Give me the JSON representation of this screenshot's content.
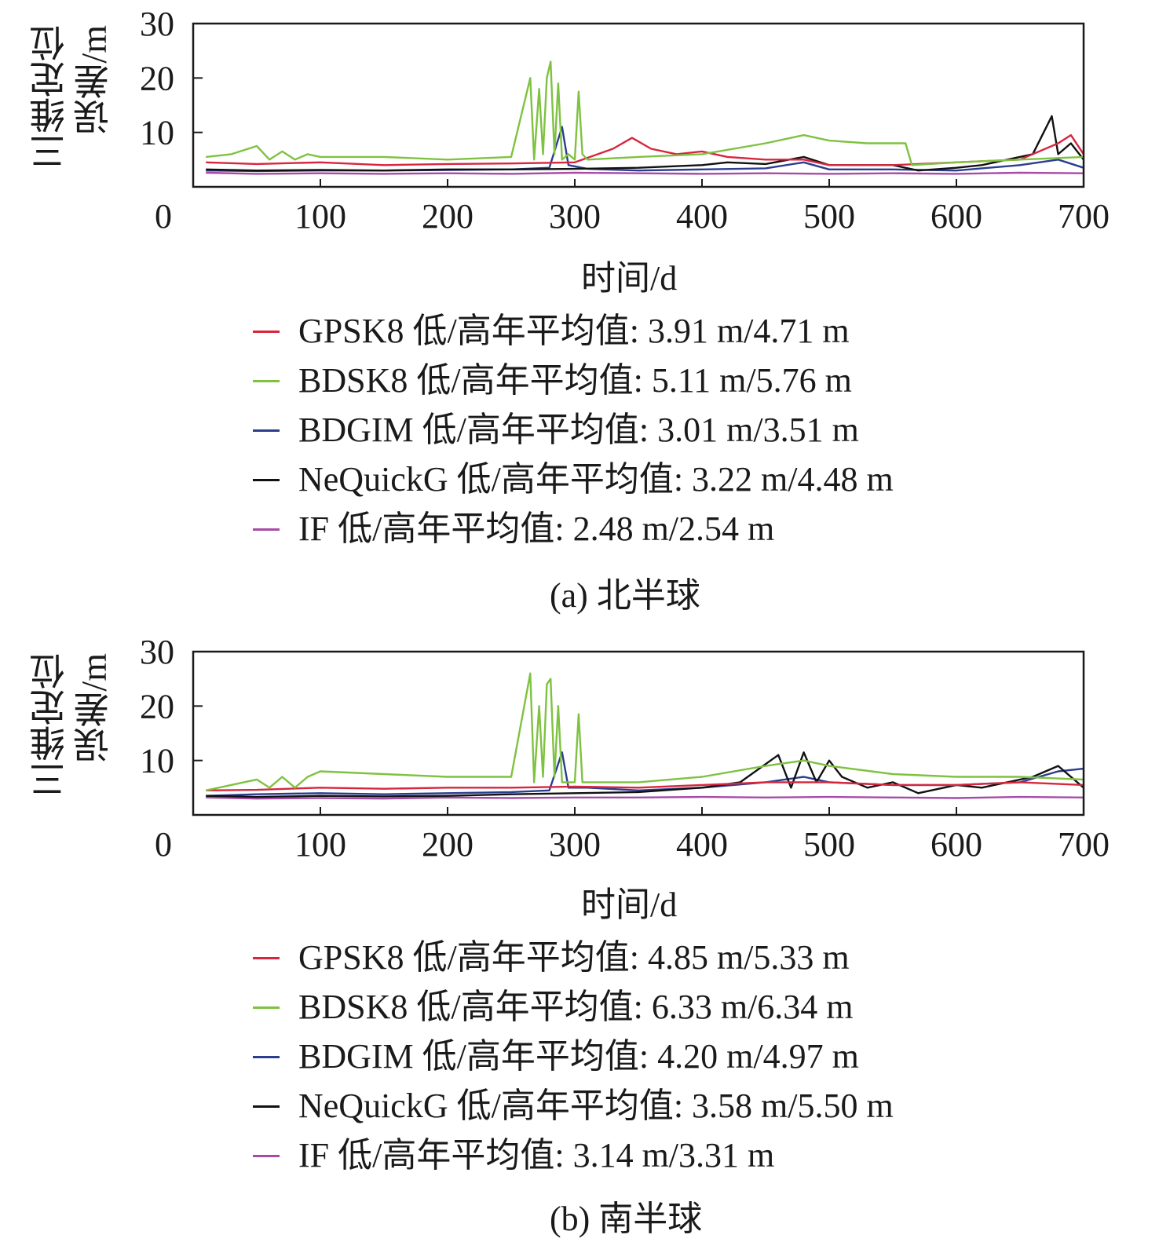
{
  "chart_data": [
    {
      "type": "line",
      "ylabel_line1": "三维定位",
      "ylabel_line2": "误差/m",
      "xlabel": "时间/d",
      "xlim": [
        0,
        700
      ],
      "ylim": [
        0,
        30
      ],
      "x_ticks": [
        "0",
        "100",
        "200",
        "300",
        "400",
        "500",
        "600",
        "700"
      ],
      "y_ticks": [
        "10",
        "20",
        "30"
      ],
      "caption": "(a) 北半球",
      "legend": [
        {
          "text": "GPSK8 低/高年平均值: 3.91 m/4.71 m",
          "color": "#d7263d"
        },
        {
          "text": "BDSK8 低/高年平均值: 5.11 m/5.76 m",
          "color": "#7fc241"
        },
        {
          "text": "BDGIM 低/高年平均值: 3.01 m/3.51 m",
          "color": "#2a3d8f"
        },
        {
          "text": "NeQuickG 低/高年平均值: 3.22 m/4.48 m",
          "color": "#111111"
        },
        {
          "text": "IF 低/高年平均值: 2.48 m/2.54 m",
          "color": "#a64ca6"
        }
      ],
      "series": [
        {
          "color": "#a64ca6",
          "x": [
            10,
            50,
            100,
            150,
            200,
            250,
            300,
            350,
            400,
            450,
            500,
            550,
            600,
            650,
            700
          ],
          "y": [
            2.6,
            2.4,
            2.5,
            2.4,
            2.5,
            2.4,
            2.6,
            2.5,
            2.4,
            2.5,
            2.4,
            2.5,
            2.4,
            2.6,
            2.5
          ]
        },
        {
          "color": "#2a3d8f",
          "x": [
            10,
            50,
            100,
            150,
            200,
            250,
            280,
            290,
            295,
            310,
            350,
            400,
            450,
            480,
            500,
            550,
            600,
            650,
            680,
            700
          ],
          "y": [
            3.0,
            2.9,
            3.0,
            3.0,
            3.1,
            3.2,
            3.5,
            11.0,
            4.0,
            3.3,
            3.0,
            3.2,
            3.4,
            4.5,
            3.2,
            3.2,
            3.0,
            4.0,
            5.0,
            3.5
          ]
        },
        {
          "color": "#111111",
          "x": [
            10,
            50,
            100,
            150,
            200,
            250,
            300,
            350,
            400,
            420,
            450,
            480,
            500,
            550,
            570,
            600,
            620,
            640,
            660,
            675,
            680,
            690,
            700
          ],
          "y": [
            3.2,
            3.0,
            3.1,
            3.0,
            3.2,
            3.2,
            3.3,
            3.5,
            4.0,
            4.5,
            4.2,
            5.5,
            4.0,
            4.0,
            3.0,
            3.5,
            4.0,
            5.0,
            6.0,
            13.0,
            6.0,
            8.0,
            5.0
          ]
        },
        {
          "color": "#d7263d",
          "x": [
            10,
            50,
            100,
            150,
            200,
            250,
            300,
            330,
            345,
            360,
            380,
            400,
            420,
            450,
            480,
            500,
            550,
            600,
            650,
            680,
            690,
            700
          ],
          "y": [
            4.5,
            4.2,
            4.5,
            4.0,
            4.2,
            4.3,
            4.5,
            7.0,
            9.0,
            7.0,
            6.0,
            6.5,
            5.5,
            5.0,
            5.0,
            4.0,
            4.0,
            4.5,
            5.0,
            8.0,
            9.5,
            6.0
          ]
        },
        {
          "color": "#7fc241",
          "x": [
            10,
            30,
            50,
            60,
            70,
            80,
            90,
            100,
            150,
            200,
            250,
            265,
            268,
            272,
            275,
            278,
            281,
            284,
            287,
            290,
            295,
            300,
            303,
            306,
            310,
            350,
            400,
            450,
            480,
            500,
            530,
            560,
            565,
            600,
            650,
            700
          ],
          "y": [
            5.5,
            6.0,
            7.5,
            5.0,
            6.5,
            5.0,
            6.0,
            5.5,
            5.5,
            5.0,
            5.5,
            20.0,
            5.0,
            18.0,
            6.0,
            20.0,
            23.0,
            6.0,
            19.0,
            5.0,
            6.0,
            5.0,
            17.5,
            6.0,
            5.0,
            5.5,
            6.0,
            8.0,
            9.5,
            8.5,
            8.0,
            8.0,
            4.0,
            4.5,
            5.0,
            5.5
          ]
        }
      ]
    },
    {
      "type": "line",
      "ylabel_line1": "三维定位",
      "ylabel_line2": "误差/m",
      "xlabel": "时间/d",
      "xlim": [
        0,
        700
      ],
      "ylim": [
        0,
        30
      ],
      "x_ticks": [
        "0",
        "100",
        "200",
        "300",
        "400",
        "500",
        "600",
        "700"
      ],
      "y_ticks": [
        "10",
        "20",
        "30"
      ],
      "caption": "(b) 南半球",
      "legend": [
        {
          "text": "GPSK8 低/高年平均值: 4.85 m/5.33 m",
          "color": "#d7263d"
        },
        {
          "text": "BDSK8 低/高年平均值: 6.33 m/6.34 m",
          "color": "#7fc241"
        },
        {
          "text": "BDGIM 低/高年平均值: 4.20 m/4.97 m",
          "color": "#2a3d8f"
        },
        {
          "text": "NeQuickG 低/高年平均值: 3.58 m/5.50 m",
          "color": "#111111"
        },
        {
          "text": "IF 低/高年平均值: 3.14 m/3.31 m",
          "color": "#a64ca6"
        }
      ],
      "series": [
        {
          "color": "#a64ca6",
          "x": [
            10,
            50,
            100,
            150,
            200,
            250,
            300,
            350,
            400,
            450,
            500,
            550,
            600,
            650,
            700
          ],
          "y": [
            3.2,
            3.0,
            3.1,
            3.0,
            3.2,
            3.1,
            3.2,
            3.2,
            3.3,
            3.2,
            3.3,
            3.2,
            3.1,
            3.3,
            3.2
          ]
        },
        {
          "color": "#2a3d8f",
          "x": [
            10,
            50,
            100,
            150,
            200,
            250,
            280,
            290,
            295,
            310,
            350,
            400,
            450,
            480,
            500,
            550,
            600,
            650,
            680,
            700
          ],
          "y": [
            3.5,
            3.8,
            4.0,
            3.8,
            4.0,
            4.2,
            4.5,
            11.5,
            5.0,
            5.0,
            4.5,
            5.0,
            6.0,
            7.0,
            6.0,
            5.5,
            5.5,
            6.0,
            8.0,
            8.5
          ]
        },
        {
          "color": "#111111",
          "x": [
            10,
            50,
            100,
            150,
            200,
            250,
            300,
            350,
            400,
            430,
            460,
            470,
            480,
            490,
            500,
            510,
            530,
            550,
            570,
            600,
            620,
            640,
            660,
            680,
            700
          ],
          "y": [
            3.5,
            3.3,
            3.5,
            3.4,
            3.5,
            3.8,
            4.0,
            4.2,
            5.0,
            6.0,
            11.0,
            5.0,
            11.5,
            6.0,
            10.0,
            7.0,
            5.0,
            6.0,
            4.0,
            5.5,
            5.0,
            6.0,
            7.0,
            9.0,
            5.0
          ]
        },
        {
          "color": "#d7263d",
          "x": [
            10,
            50,
            100,
            150,
            200,
            250,
            300,
            350,
            400,
            450,
            500,
            550,
            600,
            650,
            700
          ],
          "y": [
            4.5,
            4.6,
            5.0,
            4.8,
            5.0,
            5.0,
            5.2,
            5.0,
            5.5,
            6.0,
            6.0,
            5.5,
            5.5,
            6.0,
            5.5
          ]
        },
        {
          "color": "#7fc241",
          "x": [
            10,
            50,
            60,
            70,
            80,
            90,
            100,
            150,
            200,
            250,
            265,
            268,
            272,
            275,
            278,
            281,
            284,
            287,
            290,
            295,
            300,
            303,
            306,
            310,
            350,
            400,
            450,
            480,
            500,
            550,
            600,
            650,
            700
          ],
          "y": [
            4.5,
            6.5,
            5.0,
            7.0,
            5.0,
            7.0,
            8.0,
            7.5,
            7.0,
            7.0,
            26.0,
            6.0,
            20.0,
            7.0,
            24.0,
            25.0,
            7.0,
            20.0,
            6.0,
            6.0,
            6.0,
            18.5,
            6.0,
            6.0,
            6.0,
            7.0,
            9.0,
            10.0,
            9.0,
            7.5,
            7.0,
            7.0,
            6.5
          ]
        }
      ]
    }
  ]
}
